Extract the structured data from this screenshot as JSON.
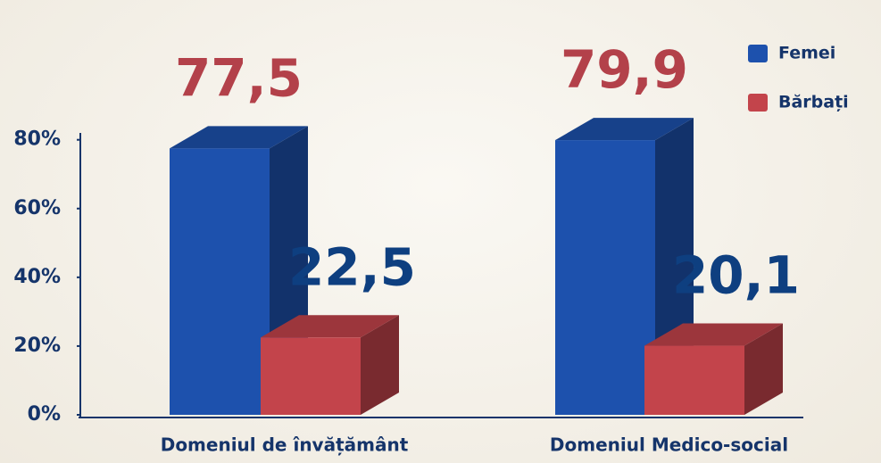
{
  "chart_data": {
    "type": "bar3d",
    "categories": [
      "Domeniul de învățământ",
      "Domeniul Medico-social"
    ],
    "series": [
      {
        "name": "Femei",
        "color": "#1d51ad",
        "values": [
          77.5,
          79.9
        ],
        "value_labels": [
          "77,5",
          "79,9"
        ]
      },
      {
        "name": "Bărbați",
        "color": "#c3444b",
        "values": [
          22.5,
          20.1
        ],
        "value_labels": [
          "22,5",
          "20,1"
        ]
      }
    ],
    "ylim": [
      0,
      82
    ],
    "yticks": [
      {
        "value": 0,
        "label": "0%"
      },
      {
        "value": 20,
        "label": "20%"
      },
      {
        "value": 40,
        "label": "40%"
      },
      {
        "value": 60,
        "label": "60%"
      },
      {
        "value": 80,
        "label": "80%"
      }
    ],
    "legend": "top-right"
  }
}
